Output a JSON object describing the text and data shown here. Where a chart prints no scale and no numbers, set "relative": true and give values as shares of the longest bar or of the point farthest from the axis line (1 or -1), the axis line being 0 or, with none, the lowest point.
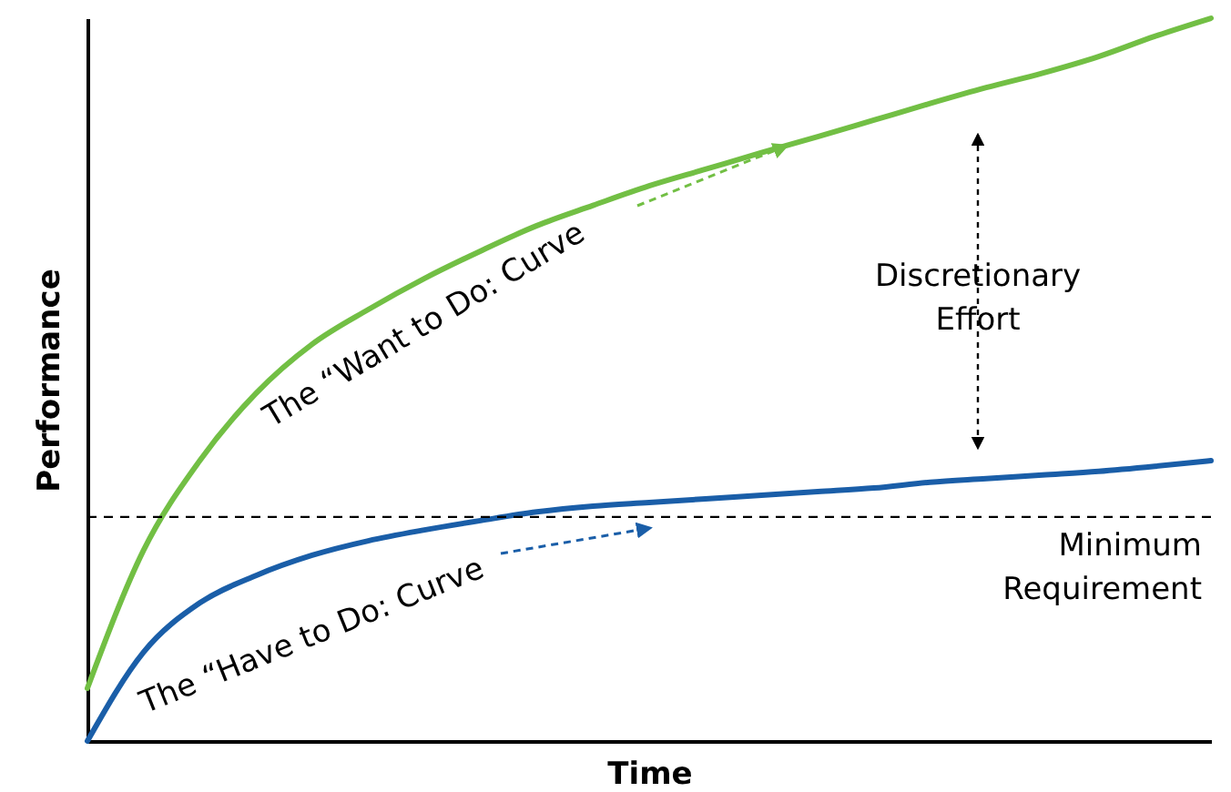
{
  "chart_data": {
    "type": "line",
    "relative": true,
    "xlabel": "Time",
    "ylabel": "Performance",
    "categories": [
      null,
      null,
      null,
      null,
      null,
      null,
      null,
      null,
      null,
      null,
      null,
      null,
      null,
      null,
      null,
      null,
      null,
      null,
      null,
      null,
      null
    ],
    "series": [
      {
        "name": "The “Want to Do: Curve",
        "color": "#72bf44",
        "values": [
          0.073,
          0.264,
          0.388,
          0.481,
          0.549,
          0.597,
          0.64,
          0.678,
          0.713,
          0.741,
          0.768,
          0.791,
          0.814,
          0.836,
          0.859,
          0.882,
          0.904,
          0.924,
          0.947,
          0.975,
          1
        ]
      },
      {
        "name": "The “Have to Do: Curve",
        "color": "#1a5ea8",
        "values": [
          0,
          0.123,
          0.191,
          0.229,
          0.257,
          0.277,
          0.292,
          0.305,
          0.317,
          0.325,
          0.33,
          0.335,
          0.34,
          0.345,
          0.35,
          0.358,
          0.363,
          0.368,
          0.373,
          0.38,
          0.388
        ]
      }
    ],
    "ref_lines": [
      {
        "axis": "y",
        "value": 0.31,
        "label": "Minimum Requirement",
        "color": "#000000",
        "line_style": "dashed"
      }
    ],
    "annotations": [
      "Discretionary Effort"
    ],
    "legend": false,
    "marker": "none",
    "line_style": "solid"
  }
}
